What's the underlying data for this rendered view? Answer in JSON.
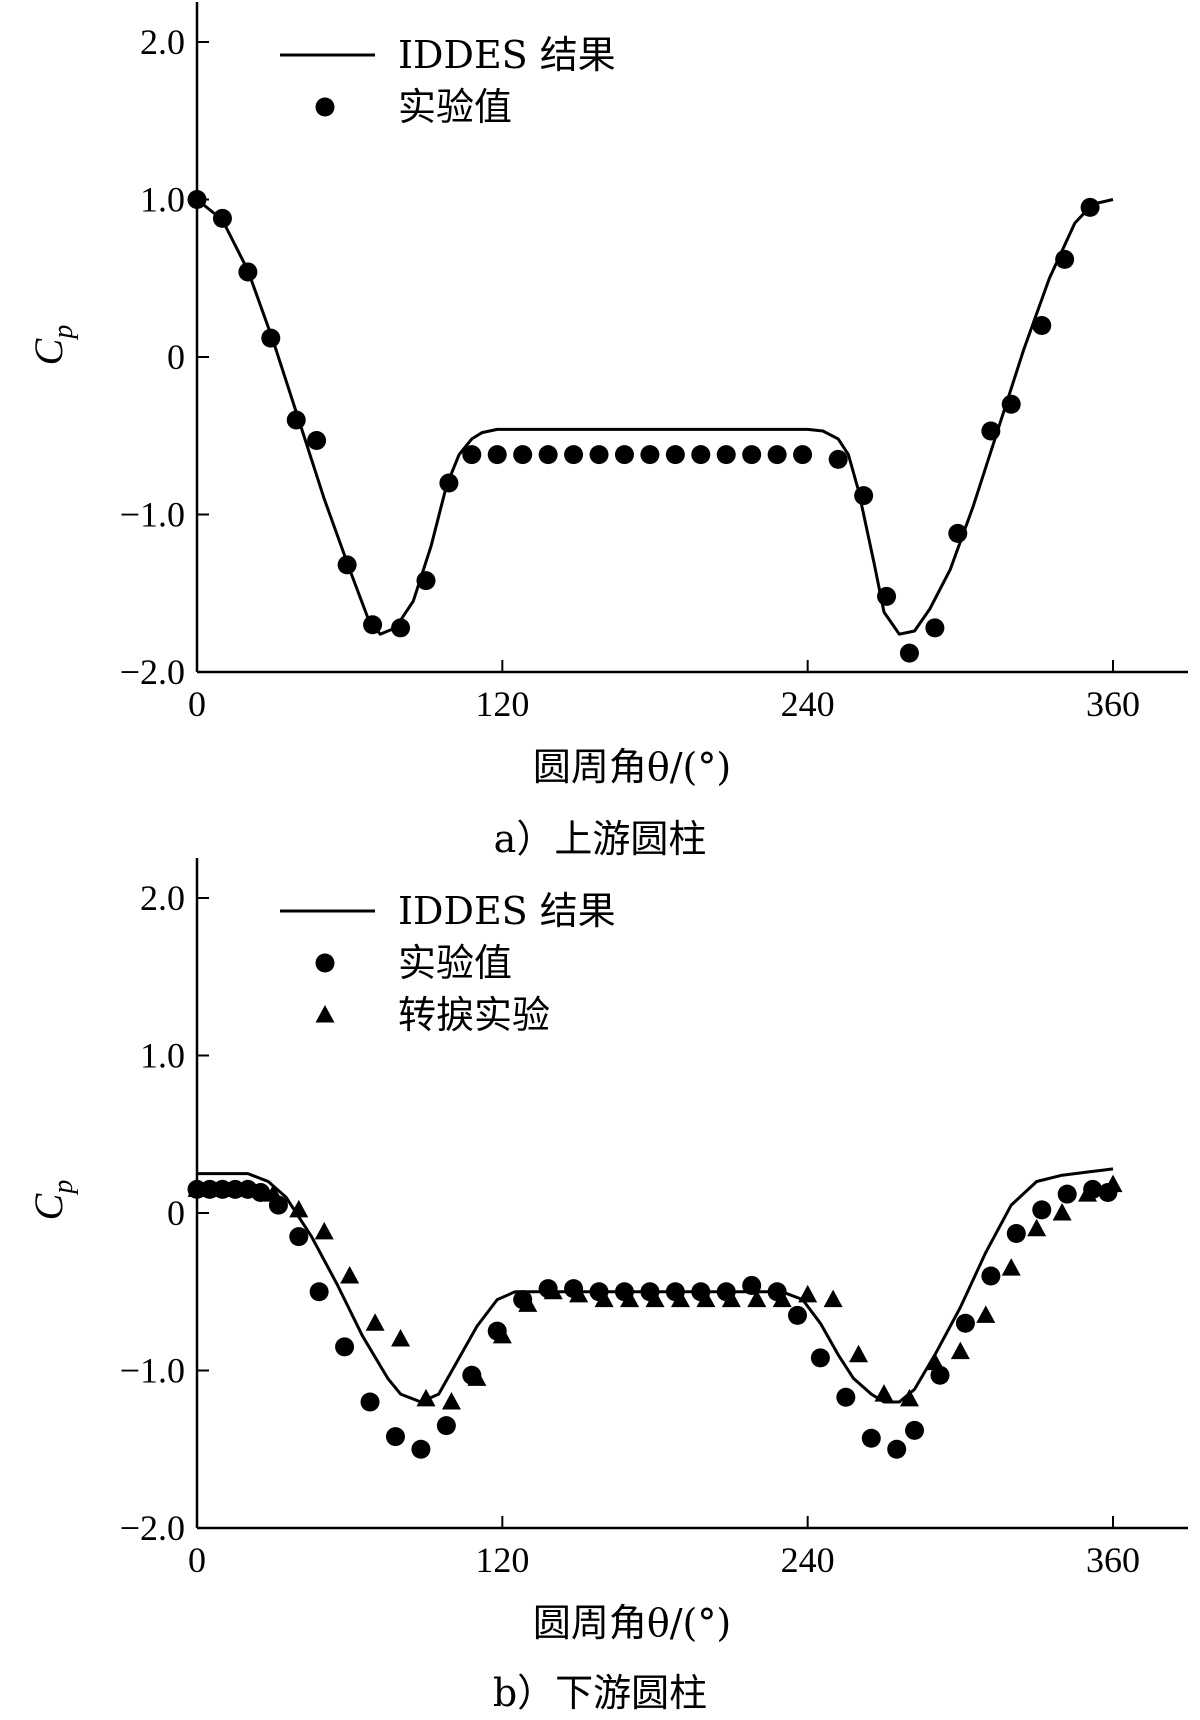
{
  "chart_data": [
    {
      "type": "line",
      "panel": "a",
      "caption": "a）上游圆柱",
      "xlabel": "圆周角θ/(°)",
      "ylabel": "C",
      "ylabel_sub": "p",
      "xlim": [
        0,
        360
      ],
      "ylim": [
        -2.0,
        2.0
      ],
      "xticks": [
        "0",
        "120",
        "240",
        "360"
      ],
      "xtick_values": [
        0,
        120,
        240,
        360
      ],
      "yticks": [
        "2.0",
        "1.0",
        "0",
        "−1.0",
        "−2.0"
      ],
      "ytick_values": [
        2.0,
        1.0,
        0,
        -1.0,
        -2.0
      ],
      "grid": false,
      "legend_position": "top-left",
      "series": [
        {
          "name": "IDDES 结果",
          "kind": "line",
          "color": "#000000",
          "x": [
            0,
            10,
            20,
            30,
            40,
            50,
            60,
            67,
            72,
            78,
            85,
            92,
            98,
            103,
            108,
            112,
            118,
            125,
            140,
            160,
            180,
            200,
            220,
            240,
            246,
            252,
            256,
            260,
            266,
            270,
            276,
            282,
            288,
            296,
            305,
            315,
            325,
            335,
            345,
            352,
            360
          ],
          "y": [
            1.0,
            0.87,
            0.55,
            0.1,
            -0.4,
            -0.9,
            -1.35,
            -1.65,
            -1.76,
            -1.72,
            -1.55,
            -1.2,
            -0.82,
            -0.62,
            -0.52,
            -0.48,
            -0.46,
            -0.46,
            -0.46,
            -0.46,
            -0.46,
            -0.46,
            -0.46,
            -0.46,
            -0.47,
            -0.52,
            -0.62,
            -0.85,
            -1.3,
            -1.62,
            -1.76,
            -1.74,
            -1.6,
            -1.35,
            -0.95,
            -0.45,
            0.05,
            0.5,
            0.85,
            0.97,
            1.0
          ]
        },
        {
          "name": "实验值",
          "kind": "circle",
          "color": "#000000",
          "x": [
            0,
            10,
            20,
            29,
            39,
            47,
            59,
            69,
            80,
            90,
            99,
            108,
            118,
            128,
            138,
            148,
            158,
            168,
            178,
            188,
            198,
            208,
            218,
            228,
            238,
            252,
            262,
            271,
            280,
            290,
            299,
            312,
            320,
            332,
            341,
            351
          ],
          "y": [
            1.0,
            0.88,
            0.54,
            0.12,
            -0.4,
            -0.53,
            -1.32,
            -1.7,
            -1.72,
            -1.42,
            -0.8,
            -0.62,
            -0.62,
            -0.62,
            -0.62,
            -0.62,
            -0.62,
            -0.62,
            -0.62,
            -0.62,
            -0.62,
            -0.62,
            -0.62,
            -0.62,
            -0.62,
            -0.65,
            -0.88,
            -1.52,
            -1.88,
            -1.72,
            -1.12,
            -0.47,
            -0.3,
            0.2,
            0.62,
            0.95
          ]
        }
      ]
    },
    {
      "type": "line",
      "panel": "b",
      "caption": "b）下游圆柱",
      "xlabel": "圆周角θ/(°)",
      "ylabel": "C",
      "ylabel_sub": "p",
      "xlim": [
        0,
        360
      ],
      "ylim": [
        -2.0,
        2.0
      ],
      "xticks": [
        "0",
        "120",
        "240",
        "360"
      ],
      "xtick_values": [
        0,
        120,
        240,
        360
      ],
      "yticks": [
        "2.0",
        "1.0",
        "0",
        "−1.0",
        "−2.0"
      ],
      "ytick_values": [
        2.0,
        1.0,
        0,
        -1.0,
        -2.0
      ],
      "grid": false,
      "legend_position": "top-left",
      "series": [
        {
          "name": "IDDES 结果",
          "kind": "line",
          "color": "#000000",
          "x": [
            0,
            10,
            20,
            28,
            35,
            45,
            55,
            65,
            75,
            80,
            88,
            95,
            102,
            110,
            118,
            125,
            135,
            150,
            170,
            190,
            210,
            230,
            238,
            245,
            252,
            258,
            265,
            270,
            276,
            282,
            290,
            300,
            310,
            320,
            330,
            340,
            350,
            355,
            360
          ],
          "y": [
            0.25,
            0.25,
            0.25,
            0.2,
            0.1,
            -0.15,
            -0.45,
            -0.78,
            -1.05,
            -1.15,
            -1.2,
            -1.15,
            -0.95,
            -0.72,
            -0.55,
            -0.5,
            -0.5,
            -0.5,
            -0.5,
            -0.5,
            -0.5,
            -0.5,
            -0.55,
            -0.7,
            -0.9,
            -1.05,
            -1.15,
            -1.2,
            -1.2,
            -1.12,
            -0.9,
            -0.6,
            -0.25,
            0.05,
            0.2,
            0.24,
            0.26,
            0.27,
            0.28
          ]
        },
        {
          "name": "实验值",
          "kind": "circle",
          "color": "#000000",
          "x": [
            0,
            5,
            10,
            15,
            20,
            25,
            32,
            40,
            48,
            58,
            68,
            78,
            88,
            98,
            108,
            118,
            128,
            138,
            148,
            158,
            168,
            178,
            188,
            198,
            208,
            218,
            228,
            236,
            245,
            255,
            265,
            275,
            282,
            292,
            302,
            312,
            322,
            332,
            342,
            352,
            358
          ],
          "y": [
            0.15,
            0.15,
            0.15,
            0.15,
            0.15,
            0.13,
            0.05,
            -0.15,
            -0.5,
            -0.85,
            -1.2,
            -1.42,
            -1.5,
            -1.35,
            -1.03,
            -0.75,
            -0.55,
            -0.48,
            -0.48,
            -0.5,
            -0.5,
            -0.5,
            -0.5,
            -0.5,
            -0.5,
            -0.46,
            -0.5,
            -0.65,
            -0.92,
            -1.17,
            -1.43,
            -1.5,
            -1.38,
            -1.03,
            -0.7,
            -0.4,
            -0.13,
            0.02,
            0.12,
            0.15,
            0.13
          ]
        },
        {
          "name": "转捩实验",
          "kind": "triangle",
          "color": "#000000",
          "x": [
            0,
            10,
            20,
            30,
            40,
            50,
            60,
            70,
            80,
            90,
            100,
            110,
            120,
            130,
            140,
            150,
            160,
            170,
            180,
            190,
            200,
            210,
            220,
            230,
            240,
            250,
            260,
            270,
            280,
            290,
            300,
            310,
            320,
            330,
            340,
            350,
            360
          ],
          "y": [
            0.15,
            0.15,
            0.15,
            0.12,
            0.02,
            -0.12,
            -0.4,
            -0.7,
            -0.8,
            -1.18,
            -1.2,
            -1.05,
            -0.78,
            -0.58,
            -0.5,
            -0.52,
            -0.55,
            -0.55,
            -0.55,
            -0.55,
            -0.55,
            -0.55,
            -0.55,
            -0.55,
            -0.52,
            -0.55,
            -0.9,
            -1.15,
            -1.18,
            -0.95,
            -0.88,
            -0.65,
            -0.35,
            -0.1,
            0.0,
            0.12,
            0.18
          ]
        }
      ]
    }
  ]
}
